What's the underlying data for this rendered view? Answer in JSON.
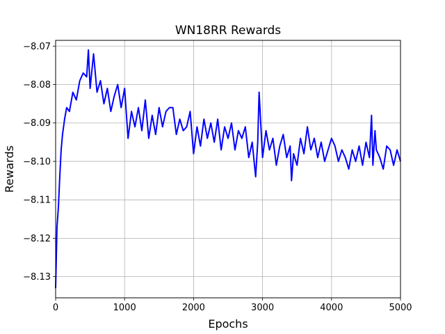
{
  "chart_data": {
    "type": "line",
    "title": "WN18RR Rewards",
    "xlabel": "Epochs",
    "ylabel": "Rewards",
    "xlim": [
      0,
      5000
    ],
    "ylim": [
      -8.1355,
      -8.0685
    ],
    "xticks": [
      0,
      1000,
      2000,
      3000,
      4000,
      5000
    ],
    "xtick_labels": [
      "0",
      "1000",
      "2000",
      "3000",
      "4000",
      "5000"
    ],
    "yticks": [
      -8.13,
      -8.12,
      -8.11,
      -8.1,
      -8.09,
      -8.08,
      -8.07
    ],
    "ytick_labels": [
      "−8.13",
      "−8.12",
      "−8.11",
      "−8.10",
      "−8.09",
      "−8.08",
      "−8.07"
    ],
    "grid": true,
    "series": [
      {
        "color": "#0000ff",
        "x": [
          0,
          20,
          40,
          60,
          80,
          100,
          130,
          160,
          200,
          250,
          300,
          350,
          400,
          450,
          475,
          500,
          550,
          600,
          650,
          700,
          750,
          800,
          850,
          900,
          950,
          1000,
          1050,
          1100,
          1150,
          1200,
          1250,
          1300,
          1350,
          1400,
          1450,
          1500,
          1550,
          1600,
          1650,
          1700,
          1750,
          1800,
          1850,
          1900,
          1950,
          2000,
          2050,
          2100,
          2150,
          2200,
          2250,
          2300,
          2350,
          2400,
          2450,
          2500,
          2550,
          2600,
          2650,
          2700,
          2750,
          2800,
          2850,
          2900,
          2930,
          2950,
          3000,
          3050,
          3100,
          3150,
          3200,
          3250,
          3300,
          3350,
          3400,
          3420,
          3450,
          3500,
          3550,
          3600,
          3650,
          3700,
          3750,
          3800,
          3850,
          3900,
          3950,
          4000,
          4050,
          4100,
          4150,
          4200,
          4250,
          4300,
          4350,
          4400,
          4450,
          4500,
          4550,
          4580,
          4600,
          4630,
          4650,
          4700,
          4750,
          4800,
          4850,
          4900,
          4950,
          5000
        ],
        "y": [
          -8.133,
          -8.117,
          -8.112,
          -8.104,
          -8.097,
          -8.093,
          -8.089,
          -8.086,
          -8.087,
          -8.082,
          -8.084,
          -8.079,
          -8.077,
          -8.078,
          -8.071,
          -8.081,
          -8.072,
          -8.082,
          -8.079,
          -8.085,
          -8.081,
          -8.087,
          -8.083,
          -8.08,
          -8.086,
          -8.081,
          -8.094,
          -8.087,
          -8.091,
          -8.086,
          -8.092,
          -8.084,
          -8.094,
          -8.088,
          -8.093,
          -8.086,
          -8.091,
          -8.087,
          -8.086,
          -8.086,
          -8.093,
          -8.089,
          -8.092,
          -8.091,
          -8.087,
          -8.098,
          -8.091,
          -8.096,
          -8.089,
          -8.094,
          -8.09,
          -8.095,
          -8.089,
          -8.097,
          -8.091,
          -8.094,
          -8.09,
          -8.097,
          -8.092,
          -8.094,
          -8.091,
          -8.099,
          -8.095,
          -8.104,
          -8.095,
          -8.082,
          -8.099,
          -8.092,
          -8.097,
          -8.094,
          -8.101,
          -8.096,
          -8.093,
          -8.099,
          -8.096,
          -8.105,
          -8.098,
          -8.101,
          -8.094,
          -8.098,
          -8.091,
          -8.097,
          -8.094,
          -8.099,
          -8.095,
          -8.1,
          -8.097,
          -8.094,
          -8.096,
          -8.1,
          -8.097,
          -8.099,
          -8.102,
          -8.097,
          -8.1,
          -8.096,
          -8.101,
          -8.095,
          -8.099,
          -8.088,
          -8.101,
          -8.092,
          -8.097,
          -8.099,
          -8.102,
          -8.096,
          -8.097,
          -8.101,
          -8.097,
          -8.1
        ]
      }
    ]
  }
}
